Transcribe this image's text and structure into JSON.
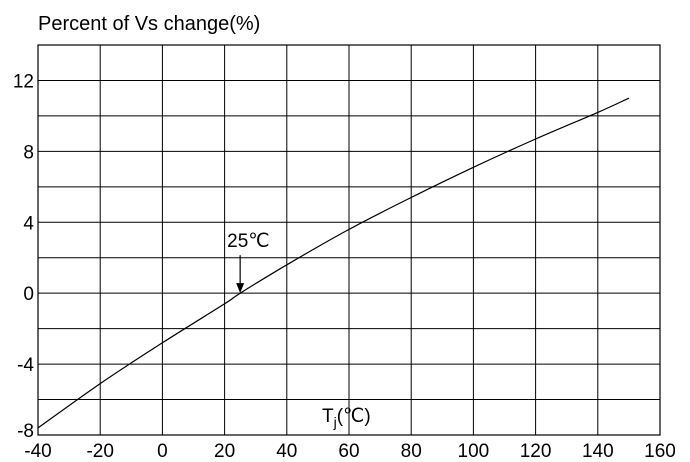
{
  "chart_data": {
    "type": "line",
    "title": "Percent of Vs change(%)",
    "xlabel": "Tj(℃)",
    "xlabel_main": "T",
    "xlabel_sub": "j",
    "xlabel_rest": "(℃)",
    "ylabel": "",
    "xlim": [
      -40,
      160
    ],
    "ylim": [
      -8,
      14
    ],
    "x_ticks": [
      -40,
      -20,
      0,
      20,
      40,
      60,
      80,
      100,
      120,
      140,
      160
    ],
    "x_tick_labels": [
      "-40",
      "-20",
      "0",
      "20",
      "40",
      "60",
      "80",
      "100",
      "120",
      "140",
      "160"
    ],
    "y_ticks": [
      -8,
      -4,
      0,
      4,
      8,
      12
    ],
    "y_tick_labels": [
      "-8",
      "-4",
      "0",
      "4",
      "8",
      "12"
    ],
    "grid": true,
    "series": [
      {
        "x": [
          -40,
          -20,
          0,
          20,
          25,
          40,
          60,
          80,
          100,
          120,
          140,
          150
        ],
        "y": [
          -7.6,
          -5.1,
          -2.8,
          -0.6,
          0.0,
          1.6,
          3.6,
          5.4,
          7.1,
          8.7,
          10.2,
          11.0
        ]
      }
    ],
    "annotations": [
      {
        "text": "25℃",
        "x": 25,
        "y": 0,
        "arrow": true
      }
    ],
    "colors": {
      "line": "#000000",
      "grid": "#000000",
      "background": "#ffffff"
    }
  }
}
